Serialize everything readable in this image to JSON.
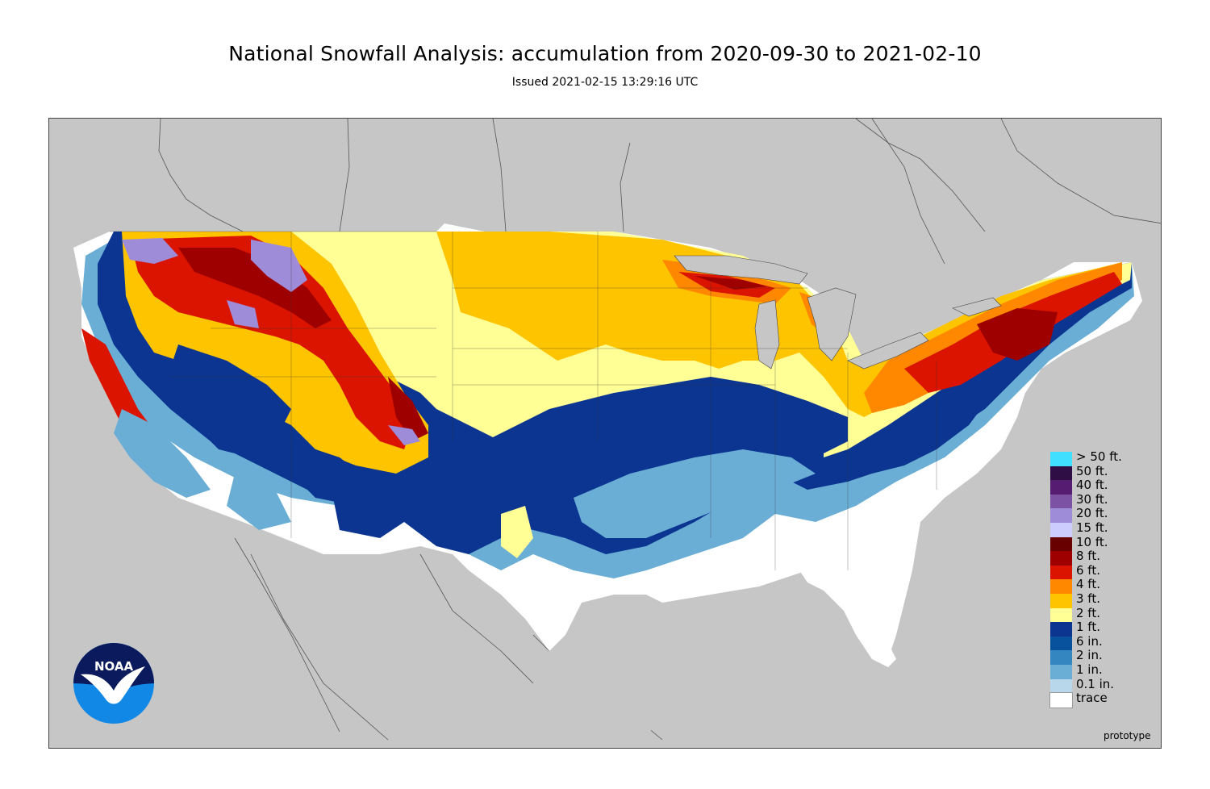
{
  "title": "National Snowfall Analysis: accumulation from 2020-09-30 to 2021-02-10",
  "subtitle": "Issued 2021-02-15 13:29:16 UTC",
  "watermark": "prototype",
  "logo": {
    "text": "NOAA"
  },
  "colors": {
    "background": "#c6c6c6",
    "border": "#555555",
    "trace": "#ffffff",
    "in_0_1": "#b8d7ea",
    "in_1": "#6aaed6",
    "in_2": "#3386c0",
    "in_6": "#08519c",
    "ft_1": "#0b3591",
    "ft_2": "#ffff96",
    "ft_3": "#ffc400",
    "ft_4": "#ff8800",
    "ft_6": "#db1400",
    "ft_8": "#9e0000",
    "ft_10": "#690000",
    "ft_15": "#ccccff",
    "ft_20": "#9f8cd8",
    "ft_30": "#7c52a5",
    "ft_40": "#561c72",
    "ft_50": "#2e0e44",
    "gt_50": "#40dfff"
  },
  "legend": [
    {
      "label": "> 50 ft.",
      "color": "#40dfff"
    },
    {
      "label": "50 ft.",
      "color": "#2e0e44"
    },
    {
      "label": "40 ft.",
      "color": "#561c72"
    },
    {
      "label": "30 ft.",
      "color": "#7c52a5"
    },
    {
      "label": "20 ft.",
      "color": "#9f8cd8"
    },
    {
      "label": "15 ft.",
      "color": "#ccccff"
    },
    {
      "label": "10 ft.",
      "color": "#690000"
    },
    {
      "label": "8 ft.",
      "color": "#9e0000"
    },
    {
      "label": "6 ft.",
      "color": "#db1400"
    },
    {
      "label": "4 ft.",
      "color": "#ff8800"
    },
    {
      "label": "3 ft.",
      "color": "#ffc400"
    },
    {
      "label": "2 ft.",
      "color": "#ffff96"
    },
    {
      "label": "1 ft.",
      "color": "#0b3591"
    },
    {
      "label": "6 in.",
      "color": "#08519c"
    },
    {
      "label": "2 in.",
      "color": "#3386c0"
    },
    {
      "label": "1 in.",
      "color": "#6aaed6"
    },
    {
      "label": "0.1 in.",
      "color": "#b8d7ea"
    },
    {
      "label": "trace",
      "color": "#ffffff"
    }
  ]
}
